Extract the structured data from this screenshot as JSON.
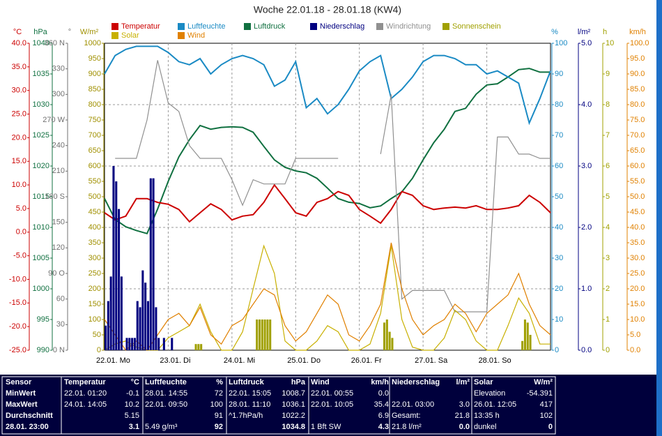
{
  "chart_data": {
    "type": "line",
    "title": "Woche 22.01.18 - 28.01.18 (KW4)",
    "x": [
      0,
      4,
      8,
      12,
      16,
      20,
      24,
      28,
      32,
      36,
      40,
      44,
      48,
      52,
      56,
      60,
      64,
      68,
      72,
      76,
      80,
      84,
      88,
      92,
      96,
      100,
      104,
      108,
      112,
      116,
      120,
      124,
      128,
      132,
      136,
      140,
      144,
      148,
      152,
      156,
      160,
      164,
      168
    ],
    "xlim": [
      0,
      168
    ],
    "xticks": [
      {
        "value": 0,
        "label": "22.01. Mo"
      },
      {
        "value": 24,
        "label": "23.01. Di"
      },
      {
        "value": 48,
        "label": "24.01. Mi"
      },
      {
        "value": 72,
        "label": "25.01. Do"
      },
      {
        "value": 96,
        "label": "26.01. Fr"
      },
      {
        "value": 120,
        "label": "27.01. Sa"
      },
      {
        "value": 144,
        "label": "28.01. So"
      }
    ],
    "axes": [
      {
        "unit": "°C",
        "color": "#cc0000",
        "lim": [
          -25,
          40
        ],
        "ticks": [
          {
            "value": -25,
            "label": "-25.0"
          },
          {
            "value": -20,
            "label": "-20.0"
          },
          {
            "value": -15,
            "label": "-15.0"
          },
          {
            "value": -10,
            "label": "-10.0"
          },
          {
            "value": -5,
            "label": "-5.0"
          },
          {
            "value": 0,
            "label": "0.0"
          },
          {
            "value": 5,
            "label": "5.0"
          },
          {
            "value": 10,
            "label": "10.0"
          },
          {
            "value": 15,
            "label": "15.0"
          },
          {
            "value": 20,
            "label": "20.0"
          },
          {
            "value": 25,
            "label": "25.0"
          },
          {
            "value": 30,
            "label": "30.0"
          },
          {
            "value": 35,
            "label": "35.0"
          },
          {
            "value": 40,
            "label": "40.0"
          }
        ]
      },
      {
        "unit": "hPa",
        "color": "#107040",
        "lim": [
          990,
          1040
        ],
        "ticks": [
          990,
          995,
          1000,
          1005,
          1010,
          1015,
          1020,
          1025,
          1030,
          1035,
          1040
        ]
      },
      {
        "unit": "°",
        "color": "#707070",
        "lim": [
          0,
          360
        ],
        "ticks": [
          {
            "value": 0,
            "label": "0 N"
          },
          30,
          60,
          {
            "value": 90,
            "label": "90 O"
          },
          120,
          150,
          {
            "value": 180,
            "label": "180 S"
          },
          210,
          240,
          {
            "value": 270,
            "label": "270 W"
          },
          300,
          330,
          {
            "value": 360,
            "label": "360 N"
          }
        ]
      },
      {
        "unit": "W/m²",
        "color": "#a09000",
        "lim": [
          0,
          1000
        ],
        "ticks": [
          0,
          50,
          100,
          150,
          200,
          250,
          300,
          350,
          400,
          450,
          500,
          550,
          600,
          650,
          700,
          750,
          800,
          850,
          900,
          950,
          1000
        ]
      },
      {
        "unit": "%",
        "color": "#1a8ac4",
        "lim": [
          0,
          100
        ],
        "ticks": [
          0,
          10,
          20,
          30,
          40,
          50,
          60,
          70,
          80,
          90,
          100
        ]
      },
      {
        "unit": "l/m²",
        "color": "#000080",
        "lim": [
          0,
          5
        ],
        "grid": true,
        "ticks": [
          {
            "value": 0,
            "label": "0.0"
          },
          {
            "value": 1,
            "label": "1.0"
          },
          {
            "value": 2,
            "label": "2.0"
          },
          {
            "value": 3,
            "label": "3.0"
          },
          {
            "value": 4,
            "label": "4.0"
          },
          {
            "value": 5,
            "label": "5.0"
          }
        ]
      },
      {
        "unit": "h",
        "color": "#a0a000",
        "lim": [
          0,
          10
        ],
        "ticks": [
          0,
          1,
          2,
          3,
          4,
          5,
          6,
          7,
          8,
          9,
          10
        ]
      },
      {
        "unit": "km/h",
        "color": "#e08000",
        "lim": [
          0,
          100
        ],
        "ticks": [
          {
            "value": 0,
            "label": "0.0"
          },
          {
            "value": 5,
            "label": "5.0"
          },
          {
            "value": 10,
            "label": "10.0"
          },
          {
            "value": 15,
            "label": "15.0"
          },
          {
            "value": 20,
            "label": "20.0"
          },
          {
            "value": 25,
            "label": "25.0"
          },
          {
            "value": 30,
            "label": "30.0"
          },
          {
            "value": 35,
            "label": "35.0"
          },
          {
            "value": 40,
            "label": "40.0"
          },
          {
            "value": 45,
            "label": "45.0"
          },
          {
            "value": 50,
            "label": "50.0"
          },
          {
            "value": 55,
            "label": "55.0"
          },
          {
            "value": 60,
            "label": "60.0"
          },
          {
            "value": 65,
            "label": "65.0"
          },
          {
            "value": 70,
            "label": "70.0"
          },
          {
            "value": 75,
            "label": "75.0"
          },
          {
            "value": 80,
            "label": "80.0"
          },
          {
            "value": 85,
            "label": "85.0"
          },
          {
            "value": 90,
            "label": "90.0"
          },
          {
            "value": 95,
            "label": "95.0"
          },
          {
            "value": 100,
            "label": "100.0"
          }
        ]
      }
    ],
    "series": [
      {
        "name": "Temperatur",
        "color": "#cc0000",
        "type": "line",
        "axis": 0,
        "values": [
          4.1,
          2.6,
          3.4,
          7.1,
          7.1,
          6.3,
          5.9,
          4.8,
          2.2,
          4.1,
          6.0,
          4.8,
          2.6,
          3.4,
          3.7,
          6.3,
          10.0,
          7.1,
          4.1,
          3.4,
          6.3,
          7.1,
          8.6,
          7.8,
          4.8,
          3.4,
          1.9,
          4.8,
          8.6,
          7.8,
          5.6,
          4.8,
          5.1,
          5.3,
          5.1,
          5.6,
          4.8,
          4.8,
          5.1,
          5.6,
          7.8,
          6.3,
          4.1
        ]
      },
      {
        "name": "Luftfeuchte",
        "color": "#1a8ac4",
        "type": "line",
        "axis": 4,
        "values": [
          90,
          96,
          98,
          99,
          99,
          99,
          97,
          94,
          93,
          95,
          90,
          93,
          95,
          96,
          95,
          93,
          86,
          88,
          94,
          79,
          82,
          77,
          80,
          85,
          91,
          94,
          96,
          82,
          85,
          89,
          94,
          96,
          96,
          95,
          93,
          93,
          90,
          91,
          89,
          87,
          74,
          82,
          91
        ]
      },
      {
        "name": "Luftdruck",
        "color": "#107040",
        "type": "line",
        "axis": 1,
        "values": [
          1014.7,
          1011.3,
          1010.1,
          1009.5,
          1009.0,
          1013.0,
          1017.5,
          1021.5,
          1024.3,
          1026.6,
          1026.0,
          1026.3,
          1026.4,
          1026.3,
          1025.5,
          1023.2,
          1021.0,
          1019.8,
          1019.2,
          1018.9,
          1018.0,
          1016.4,
          1014.7,
          1014.1,
          1013.9,
          1013.2,
          1013.5,
          1014.7,
          1015.8,
          1018.0,
          1021.0,
          1023.8,
          1026.0,
          1028.9,
          1029.4,
          1031.7,
          1033.2,
          1033.4,
          1034.5,
          1035.7,
          1035.9,
          1035.3,
          1035.3
        ]
      },
      {
        "name": "Niederschlag",
        "color": "#000080",
        "type": "bar",
        "axis": 5,
        "x": [
          0,
          1,
          2,
          3,
          4,
          5,
          6,
          8,
          9,
          10,
          11,
          12,
          13,
          14,
          15,
          16,
          17,
          18,
          19,
          20,
          22,
          25
        ],
        "values": [
          0.4,
          0.8,
          1.2,
          3.0,
          2.75,
          2.3,
          1.2,
          0.2,
          0.2,
          0.2,
          0.2,
          0.8,
          0.7,
          1.3,
          1.1,
          0.8,
          2.8,
          2.8,
          0.7,
          0.2,
          0.2,
          0.2
        ]
      },
      {
        "name": "Windrichtung",
        "color": "#909090",
        "type": "line",
        "axis": 2,
        "values": [
          null,
          225,
          225,
          225,
          270,
          340,
          290,
          280,
          240,
          225,
          225,
          225,
          200,
          170,
          200,
          195,
          195,
          195,
          225,
          225,
          225,
          225,
          225,
          null,
          null,
          null,
          230,
          300,
          60,
          70,
          70,
          70,
          70,
          45,
          45,
          45,
          45,
          250,
          250,
          230,
          230,
          225,
          225
        ]
      },
      {
        "name": "Sonnenschein",
        "color": "#a0a000",
        "type": "bar",
        "axis": 6,
        "x": [
          34,
          35,
          36,
          57,
          58,
          59,
          60,
          61,
          62,
          105,
          106,
          107,
          108,
          157,
          158,
          159,
          160
        ],
        "values": [
          0.2,
          0.2,
          0.2,
          1.0,
          1.0,
          1.0,
          1.0,
          1.0,
          1.0,
          0.9,
          1.0,
          0.6,
          0.4,
          0.3,
          1.0,
          0.9,
          0.5
        ]
      },
      {
        "name": "Solar",
        "color": "#c8b000",
        "type": "line",
        "axis": 3,
        "values": [
          0,
          20,
          30,
          10,
          0,
          0,
          40,
          60,
          80,
          150,
          60,
          0,
          0,
          60,
          200,
          340,
          250,
          30,
          0,
          0,
          30,
          80,
          60,
          0,
          0,
          20,
          120,
          340,
          100,
          10,
          0,
          0,
          40,
          130,
          100,
          30,
          0,
          0,
          80,
          170,
          120,
          20,
          20
        ]
      },
      {
        "name": "Wind",
        "color": "#e08000",
        "type": "line",
        "axis": 7,
        "values": [
          10,
          5,
          0,
          3,
          0,
          5,
          10,
          12,
          8,
          14,
          5,
          2,
          8,
          10,
          15,
          20,
          18,
          8,
          3,
          6,
          12,
          18,
          15,
          5,
          3,
          8,
          15,
          35,
          20,
          10,
          5,
          8,
          10,
          15,
          12,
          6,
          12,
          15,
          18,
          25,
          15,
          8,
          5
        ]
      }
    ]
  },
  "stats": {
    "sensor": [
      "Sensor",
      "MinWert",
      "MaxWert",
      "Durchschnitt",
      "28.01. 23:00"
    ],
    "columns": [
      {
        "title": "Temperatur",
        "unit": "°C",
        "rows": [
          {
            "label": "22.01. 01:20",
            "value": "-0.1"
          },
          {
            "label": "24.01. 14:05",
            "value": "10.2"
          },
          {
            "value": "5.15"
          },
          {
            "value": "3.1"
          }
        ]
      },
      {
        "title": "Luftfeuchte",
        "unit": "%",
        "rows": [
          {
            "label": "28.01. 14:55",
            "value": "72"
          },
          {
            "label": "22.01. 09:50",
            "value": "100"
          },
          {
            "value": "91"
          },
          {
            "label": "5.49 g/m³",
            "value": "92"
          }
        ]
      },
      {
        "title": "Luftdruck",
        "unit": "hPa",
        "rows": [
          {
            "label": "22.01. 15:05",
            "value": "1008.7"
          },
          {
            "label": "28.01. 11:10",
            "value": "1036.1"
          },
          {
            "label": "^1.7hPa/h",
            "value": "1022.2"
          },
          {
            "value": "1034.8"
          }
        ]
      },
      {
        "title": "Wind",
        "unit": "km/h",
        "rows": [
          {
            "label": "22.01. 00:55",
            "value": "0.0"
          },
          {
            "label": "22.01. 10:05",
            "value": "35.4"
          },
          {
            "value": "6.9"
          },
          {
            "label": "1 Bft SW",
            "value": "4.3"
          }
        ]
      },
      {
        "title": "Niederschlag",
        "unit": "l/m²",
        "rows": [
          null,
          {
            "label": "22.01. 03:00",
            "value": "3.0"
          },
          {
            "label": "Gesamt:",
            "value": "21.8"
          },
          {
            "label": "21.8 l/m²",
            "value": "0.0"
          }
        ]
      },
      {
        "title": "Solar",
        "unit": "W/m²",
        "rows": [
          {
            "label": "Elevation",
            "value": "-54.391"
          },
          {
            "label": "26.01. 12:05",
            "value": "417"
          },
          {
            "label": "13:35 h",
            "value": "102"
          },
          {
            "label": "dunkel",
            "value": "0"
          }
        ]
      }
    ]
  }
}
